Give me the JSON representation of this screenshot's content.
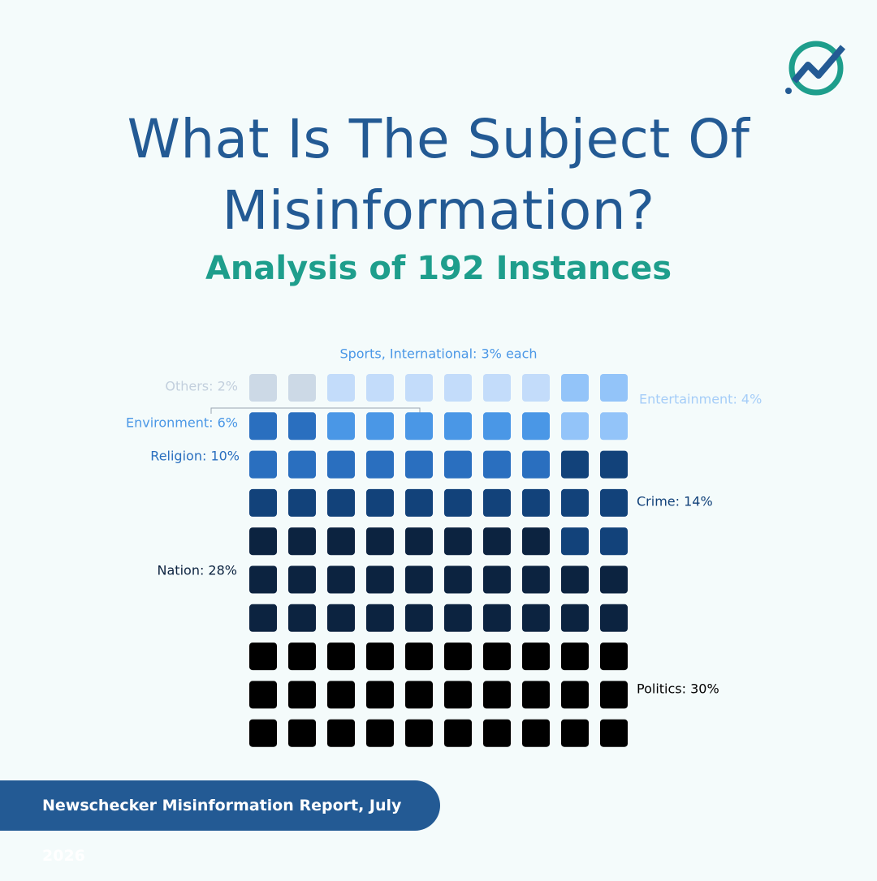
{
  "chart_data": {
    "type": "waffle",
    "title": "What Is The Subject Of Misinformation?",
    "subtitle": "Analysis of 192 Instances",
    "values": [
      30,
      28,
      14,
      10,
      6,
      4,
      3,
      3,
      2
    ],
    "value_labels": [
      "Politics: 30%",
      "Nation: 28%",
      "Crime: 14%",
      "Religion: 10%",
      "Environment: 6%",
      "Entertainment: 4%",
      "Sports, International: 3% each",
      null,
      "Others: 2%"
    ],
    "colors": [
      "#000000",
      "#0c2340",
      "#12427a",
      "#2a6fbf",
      "#4a97e6",
      "#93c4f9",
      "#c3dcfa",
      "#c3dcfa",
      "#ccd9e6"
    ]
  },
  "footer": "Newschecker Misinformation Report, July 2026"
}
